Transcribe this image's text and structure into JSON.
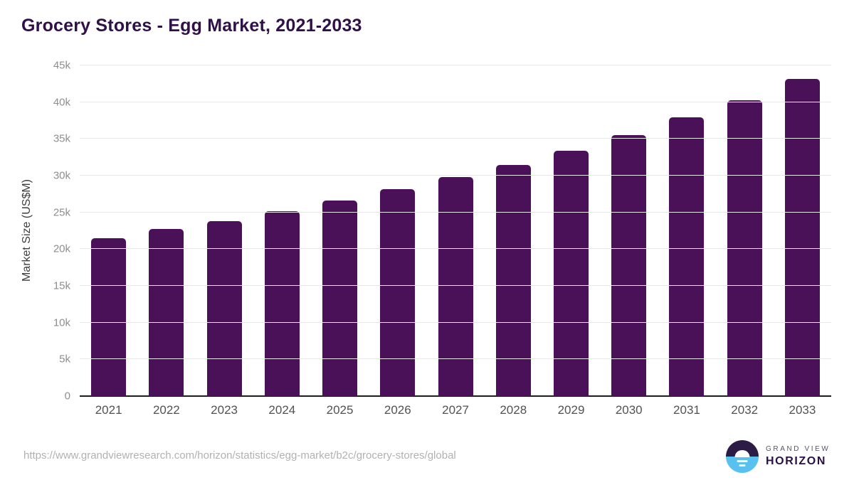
{
  "header": {
    "title": "Grocery Stores - Egg Market, 2021-2033"
  },
  "chart_data": {
    "type": "bar",
    "title": "Grocery Stores - Egg Market, 2021-2033",
    "categories": [
      "2021",
      "2022",
      "2023",
      "2024",
      "2025",
      "2026",
      "2027",
      "2028",
      "2029",
      "2030",
      "2031",
      "2032",
      "2033"
    ],
    "values": [
      21500,
      22700,
      23800,
      25200,
      26600,
      28200,
      29800,
      31500,
      33400,
      35500,
      37900,
      40300,
      43200
    ],
    "xlabel": "",
    "ylabel": "Market Size (US$M)",
    "ylim": [
      0,
      45000
    ],
    "yticks": [
      {
        "value": 0,
        "label": "0"
      },
      {
        "value": 5000,
        "label": "5k"
      },
      {
        "value": 10000,
        "label": "10k"
      },
      {
        "value": 15000,
        "label": "15k"
      },
      {
        "value": 20000,
        "label": "20k"
      },
      {
        "value": 25000,
        "label": "25k"
      },
      {
        "value": 30000,
        "label": "30k"
      },
      {
        "value": 35000,
        "label": "35k"
      },
      {
        "value": 40000,
        "label": "40k"
      },
      {
        "value": 45000,
        "label": "45k"
      }
    ],
    "grid": "horizontal",
    "legend": "none",
    "bar_color": "#4a1158"
  },
  "footer": {
    "source_url": "https://www.grandviewresearch.com/horizon/statistics/egg-market/b2c/grocery-stores/global",
    "logo": {
      "line1": "GRAND VIEW",
      "line2": "HORIZON",
      "icon": "sun-over-horizon-icon",
      "purple": "#2c1b45",
      "blue": "#58c1ef"
    }
  },
  "colors": {
    "title": "#2f1048",
    "bar": "#4a1158",
    "axis": "#1d1d1f",
    "gridline": "#e8e8e8",
    "ytick_text": "#8e8e8e",
    "xtick_text": "#525252",
    "url_text": "#b1b1b1"
  }
}
